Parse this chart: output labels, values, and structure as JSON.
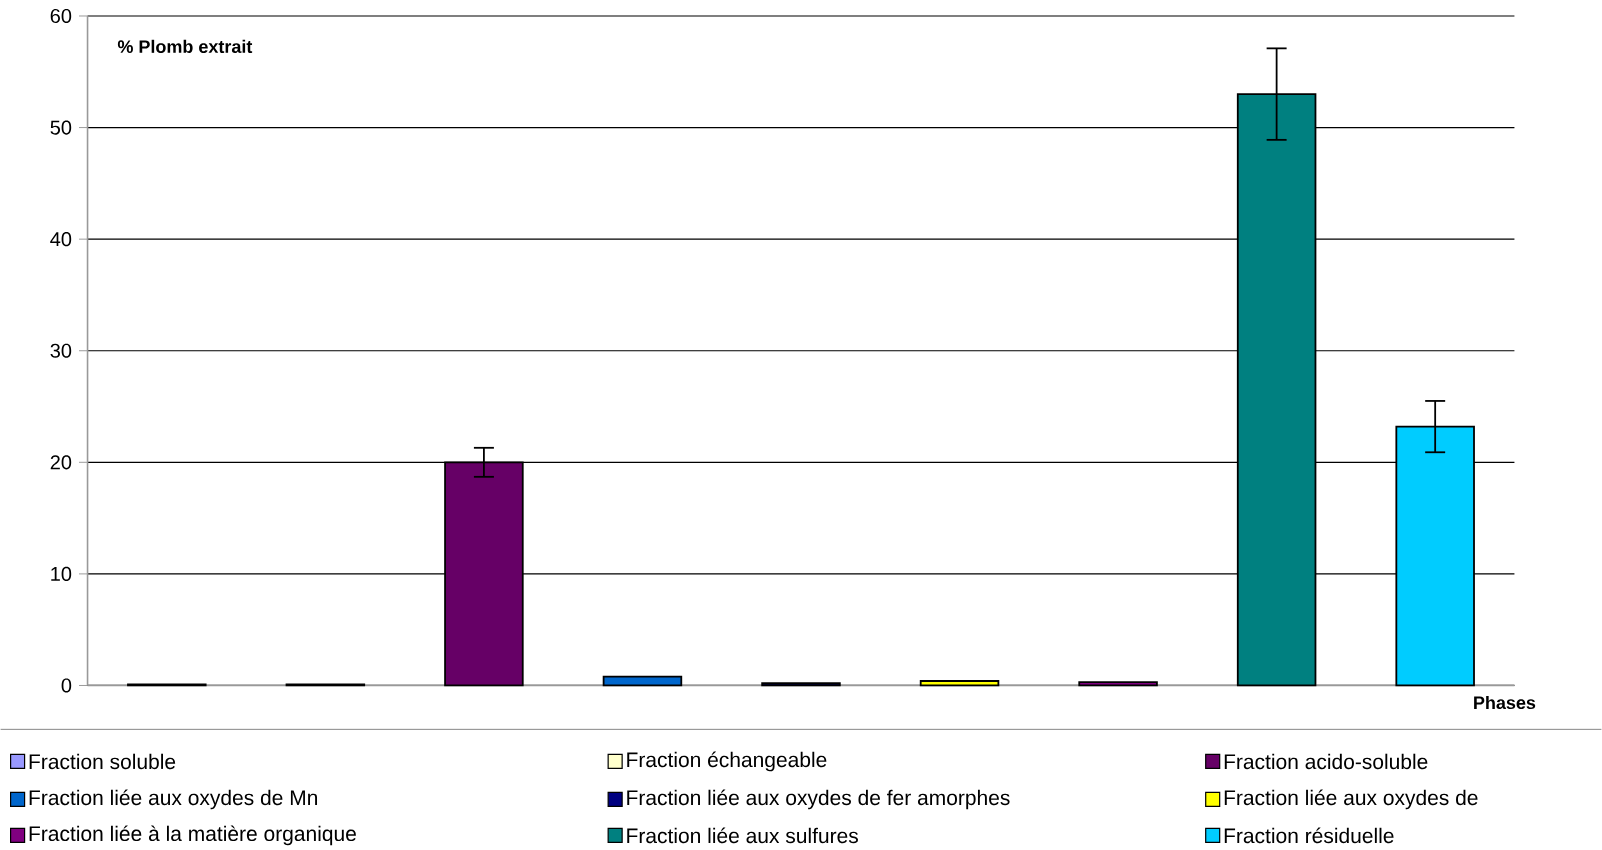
{
  "chart_data": {
    "type": "bar",
    "ylabel": "% Plomb extrait",
    "xlabel": "Phases",
    "categories": [
      null,
      null,
      null,
      null,
      null,
      null,
      null,
      null,
      null
    ],
    "series": [
      {
        "name": "Fraction soluble",
        "color": "#9999ff",
        "values": [
          0.1,
          null,
          null,
          null,
          null,
          null,
          null,
          null,
          null
        ]
      },
      {
        "name": "Fraction échangeable",
        "color": "#ffffcc",
        "values": [
          null,
          0.1,
          null,
          null,
          null,
          null,
          null,
          null,
          null
        ]
      },
      {
        "name": "Fraction acido-soluble",
        "color": "#660066",
        "values": [
          null,
          null,
          20,
          null,
          null,
          null,
          null,
          null,
          null
        ],
        "errors": [
          null,
          null,
          1.3,
          null,
          null,
          null,
          null,
          null,
          null
        ]
      },
      {
        "name": "Fraction liée aux oxydes de Mn",
        "color": "#0066cc",
        "values": [
          null,
          null,
          null,
          0.8,
          null,
          null,
          null,
          null,
          null
        ]
      },
      {
        "name": "Fraction liée aux oxydes de fer amorphes",
        "color": "#000080",
        "values": [
          null,
          null,
          null,
          null,
          0.2,
          null,
          null,
          null,
          null
        ]
      },
      {
        "name": "Fraction liée aux oxydes de",
        "color": "#ffff00",
        "values": [
          null,
          null,
          null,
          null,
          null,
          0.4,
          null,
          null,
          null
        ]
      },
      {
        "name": "Fraction liée à la matière organique",
        "color": "#800080",
        "values": [
          null,
          null,
          null,
          null,
          null,
          null,
          0.3,
          null,
          null
        ]
      },
      {
        "name": "Fraction liée aux sulfures",
        "color": "#008080",
        "values": [
          null,
          null,
          null,
          null,
          null,
          null,
          null,
          53,
          null
        ],
        "errors": [
          null,
          null,
          null,
          null,
          null,
          null,
          null,
          4.1,
          null
        ]
      },
      {
        "name": "Fraction résiduelle",
        "color": "#00ccff",
        "values": [
          null,
          null,
          null,
          null,
          null,
          null,
          null,
          null,
          23.2
        ],
        "errors": [
          null,
          null,
          null,
          null,
          null,
          null,
          null,
          null,
          2.3
        ]
      }
    ],
    "ylim": [
      0,
      60
    ],
    "yticks": [
      0,
      10,
      20,
      30,
      40,
      50,
      60
    ],
    "grid": "y",
    "legend": "bottom"
  }
}
